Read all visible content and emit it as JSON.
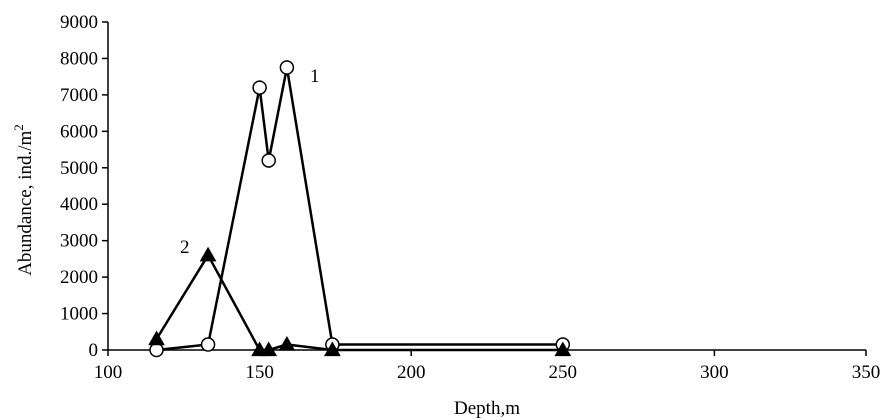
{
  "chart_data": {
    "type": "line",
    "xlabel": "Depth,m",
    "ylabel": "Abundance, ind./m",
    "ylabel_superscript": "2",
    "xlim": [
      100,
      350
    ],
    "ylim": [
      0,
      9000
    ],
    "x_ticks": [
      "100",
      "150",
      "200",
      "250",
      "300",
      "350"
    ],
    "y_ticks": [
      "0",
      "1000",
      "2000",
      "3000",
      "4000",
      "5000",
      "6000",
      "7000",
      "8000",
      "9000"
    ],
    "grid": false,
    "series": [
      {
        "name": "1",
        "marker": "open-circle",
        "color": "#000000",
        "x": [
          116,
          133,
          150,
          153,
          159,
          174,
          250
        ],
        "y": [
          0,
          150,
          7200,
          5200,
          7750,
          150,
          150
        ],
        "error": [
          0,
          0,
          200,
          200,
          200,
          0,
          0
        ]
      },
      {
        "name": "2",
        "marker": "filled-triangle",
        "color": "#000000",
        "x": [
          116,
          133,
          150,
          153,
          159,
          174,
          250
        ],
        "y": [
          300,
          2600,
          0,
          0,
          150,
          0,
          0
        ]
      }
    ]
  }
}
